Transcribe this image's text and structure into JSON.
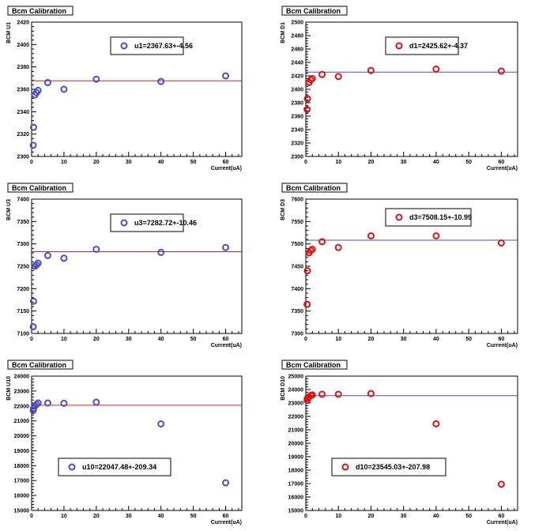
{
  "chart_data": [
    {
      "type": "scatter",
      "title": "Bcm Calibration",
      "xlabel": "Current(uA)",
      "ylabel": "BCM U1",
      "xlim": [
        0,
        65
      ],
      "ylim": [
        2300,
        2420
      ],
      "xticks": [
        0,
        10,
        20,
        30,
        40,
        50,
        60
      ],
      "yticks": [
        2300,
        2320,
        2340,
        2360,
        2380,
        2400,
        2420
      ],
      "fit_value": 2367.63,
      "marker_color": "#4b4bc8",
      "line_color": "#d02020",
      "legend": "u1=2367.63+-4.56",
      "points": [
        [
          0.5,
          2310
        ],
        [
          0.6,
          2326
        ],
        [
          1,
          2355
        ],
        [
          1.5,
          2357
        ],
        [
          2,
          2359
        ],
        [
          5,
          2366
        ],
        [
          10,
          2360
        ],
        [
          20,
          2369
        ],
        [
          40,
          2367
        ],
        [
          60,
          2372
        ]
      ]
    },
    {
      "type": "scatter",
      "title": "Bcm Calibration",
      "xlabel": "Current(uA)",
      "ylabel": "BCM D1",
      "xlim": [
        0,
        65
      ],
      "ylim": [
        2300,
        2500
      ],
      "xticks": [
        0,
        10,
        20,
        30,
        40,
        50,
        60
      ],
      "yticks": [
        2300,
        2320,
        2340,
        2360,
        2380,
        2400,
        2420,
        2440,
        2460,
        2480,
        2500
      ],
      "fit_value": 2425.62,
      "marker_color": "#e01010",
      "line_color": "#4b4bc8",
      "legend": "d1=2425.62+-4.37",
      "points": [
        [
          0.4,
          2370
        ],
        [
          0.5,
          2386
        ],
        [
          1,
          2410
        ],
        [
          1.5,
          2414
        ],
        [
          2,
          2416
        ],
        [
          5,
          2422
        ],
        [
          10,
          2419
        ],
        [
          20,
          2428
        ],
        [
          40,
          2430
        ],
        [
          60,
          2427
        ]
      ]
    },
    {
      "type": "scatter",
      "title": "Bcm Calibration",
      "xlabel": "Current(uA)",
      "ylabel": "BCM U3",
      "xlim": [
        0,
        65
      ],
      "ylim": [
        7100,
        7400
      ],
      "xticks": [
        0,
        10,
        20,
        30,
        40,
        50,
        60
      ],
      "yticks": [
        7100,
        7150,
        7200,
        7250,
        7300,
        7350,
        7400
      ],
      "fit_value": 7282.72,
      "marker_color": "#4b4bc8",
      "line_color": "#d02020",
      "legend": "u3=7282.72+-10.46",
      "points": [
        [
          0.5,
          7115
        ],
        [
          0.6,
          7172
        ],
        [
          1,
          7250
        ],
        [
          1.5,
          7253
        ],
        [
          2,
          7257
        ],
        [
          5,
          7274
        ],
        [
          10,
          7268
        ],
        [
          20,
          7288
        ],
        [
          40,
          7281
        ],
        [
          60,
          7292
        ]
      ]
    },
    {
      "type": "scatter",
      "title": "Bcm Calibration",
      "xlabel": "Current(uA)",
      "ylabel": "BCM D3",
      "xlim": [
        0,
        65
      ],
      "ylim": [
        7300,
        7600
      ],
      "xticks": [
        0,
        10,
        20,
        30,
        40,
        50,
        60
      ],
      "yticks": [
        7300,
        7350,
        7400,
        7450,
        7500,
        7550,
        7600
      ],
      "fit_value": 7508.15,
      "marker_color": "#e01010",
      "line_color": "#4b4bc8",
      "legend": "d3=7508.15+-10.99",
      "points": [
        [
          0.4,
          7365
        ],
        [
          0.5,
          7440
        ],
        [
          1,
          7480
        ],
        [
          1.5,
          7485
        ],
        [
          2,
          7488
        ],
        [
          5,
          7505
        ],
        [
          10,
          7492
        ],
        [
          20,
          7518
        ],
        [
          40,
          7518
        ],
        [
          60,
          7502
        ]
      ]
    },
    {
      "type": "scatter",
      "title": "Bcm Calibration",
      "xlabel": "Current(uA)",
      "ylabel": "BCM U10",
      "xlim": [
        0,
        65
      ],
      "ylim": [
        15000,
        24000
      ],
      "xticks": [
        0,
        10,
        20,
        30,
        40,
        50,
        60
      ],
      "yticks": [
        15000,
        16000,
        17000,
        18000,
        19000,
        20000,
        21000,
        22000,
        23000,
        24000
      ],
      "fit_value": 22047.48,
      "marker_color": "#4b4bc8",
      "line_color": "#d02020",
      "legend": "u10=22047.48+-209.34",
      "points": [
        [
          0.5,
          21700
        ],
        [
          0.6,
          21850
        ],
        [
          1,
          22000
        ],
        [
          1.5,
          22100
        ],
        [
          2,
          22200
        ],
        [
          5,
          22200
        ],
        [
          10,
          22180
        ],
        [
          20,
          22250
        ],
        [
          40,
          20800
        ],
        [
          60,
          16850
        ]
      ]
    },
    {
      "type": "scatter",
      "title": "Bcm Calibration",
      "xlabel": "Current(uA)",
      "ylabel": "BCM D10",
      "xlim": [
        0,
        65
      ],
      "ylim": [
        15000,
        25000
      ],
      "xticks": [
        0,
        10,
        20,
        30,
        40,
        50,
        60
      ],
      "yticks": [
        15000,
        16000,
        17000,
        18000,
        19000,
        20000,
        21000,
        22000,
        23000,
        24000,
        25000
      ],
      "fit_value": 23545.03,
      "marker_color": "#e01010",
      "line_color": "#4b4bc8",
      "legend": "d10=23545.03+-207.98",
      "points": [
        [
          0.4,
          23200
        ],
        [
          0.5,
          23350
        ],
        [
          1,
          23450
        ],
        [
          1.5,
          23550
        ],
        [
          2,
          23600
        ],
        [
          5,
          23650
        ],
        [
          10,
          23650
        ],
        [
          20,
          23700
        ],
        [
          40,
          21450
        ],
        [
          60,
          16950
        ]
      ]
    }
  ]
}
